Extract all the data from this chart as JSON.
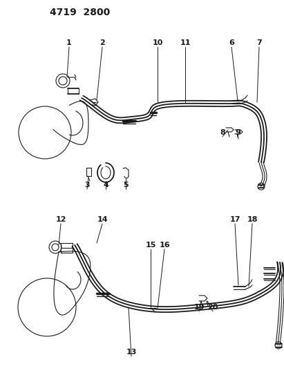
{
  "title": "4719  2800",
  "bg_color": "#ffffff",
  "line_color": "#1a1a1a",
  "title_fontsize": 10,
  "label_fontsize": 8,
  "figsize": [
    4.11,
    5.33
  ],
  "dpi": 100
}
